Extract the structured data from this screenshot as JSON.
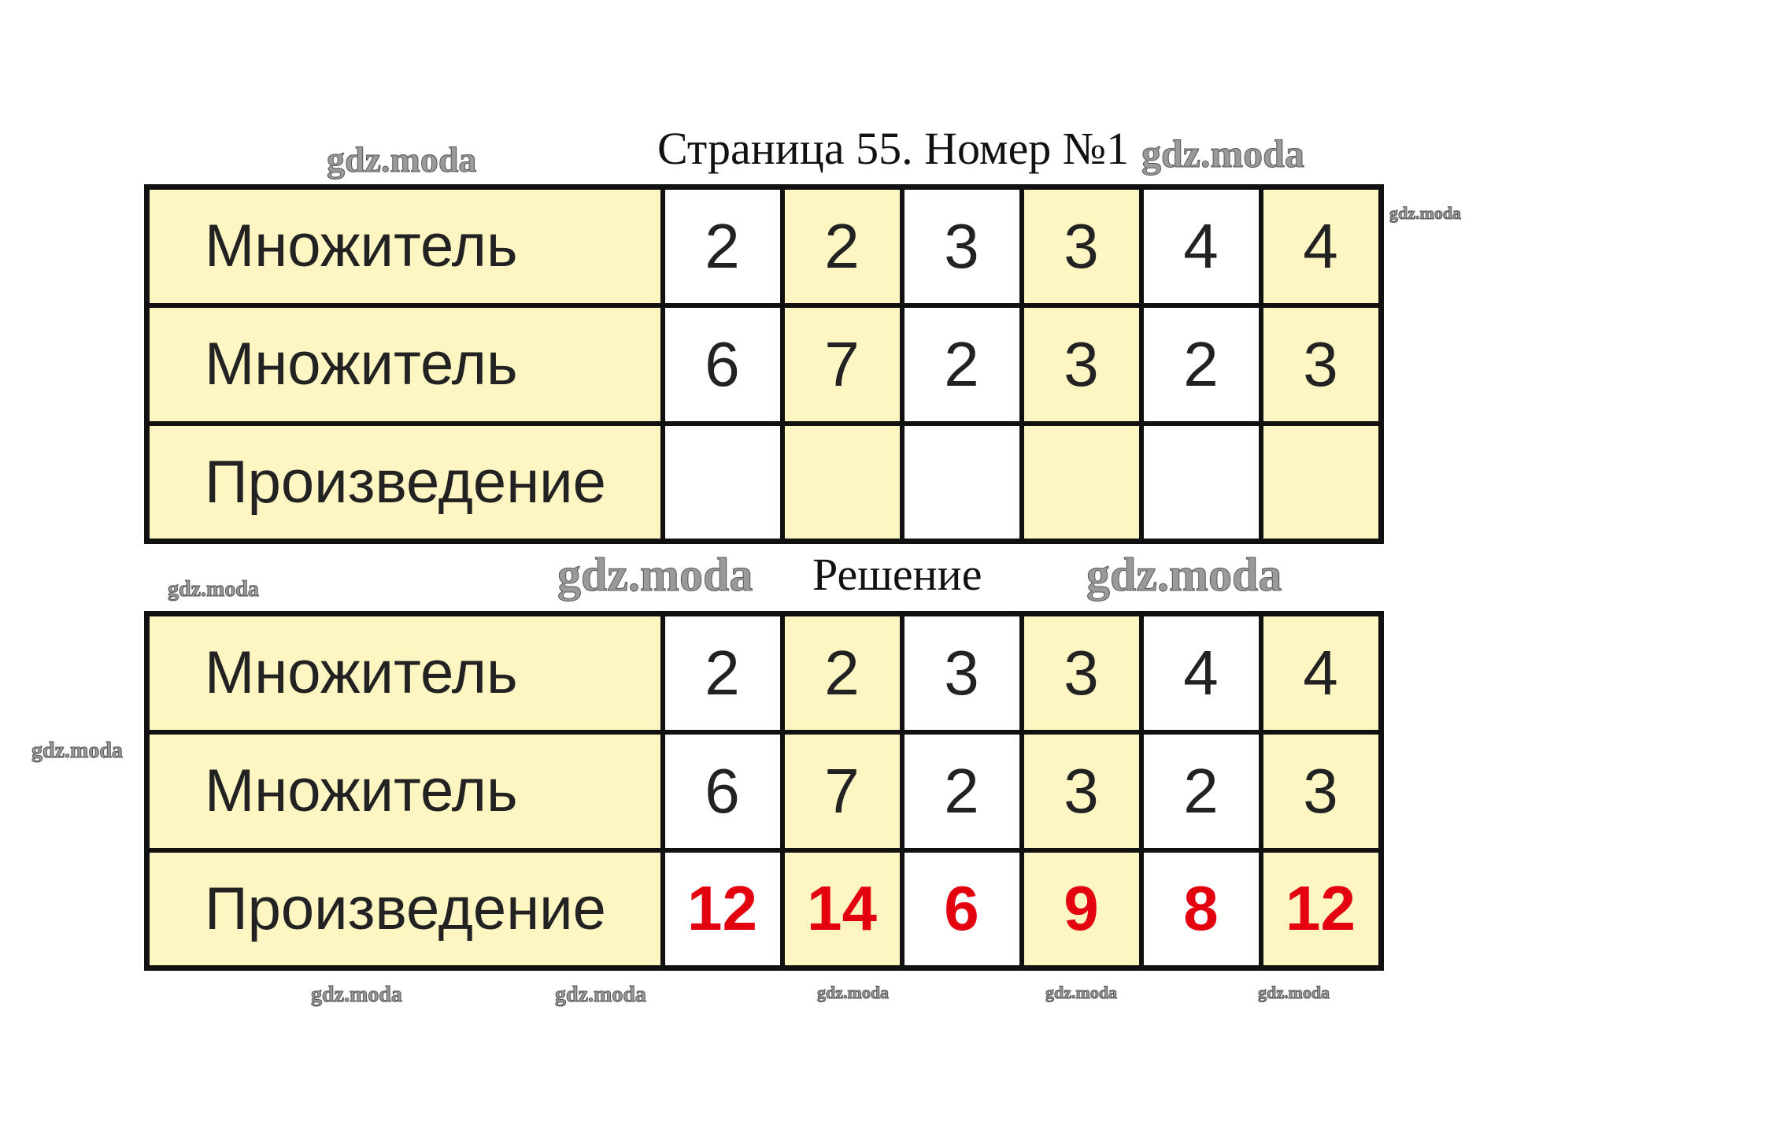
{
  "title": "Страница 55. Номер №1",
  "solution_label": "Решение",
  "watermark": "gdz.moda",
  "colors": {
    "cell_yellow": "#fdf6c3",
    "answer_red": "#e3000f"
  },
  "task_table": {
    "rows": [
      {
        "label": "Множитель",
        "values": [
          "2",
          "2",
          "3",
          "3",
          "4",
          "4"
        ]
      },
      {
        "label": "Множитель",
        "values": [
          "6",
          "7",
          "2",
          "3",
          "2",
          "3"
        ]
      },
      {
        "label": "Произведение",
        "values": [
          "",
          "",
          "",
          "",
          "",
          ""
        ]
      }
    ]
  },
  "solution_table": {
    "rows": [
      {
        "label": "Множитель",
        "values": [
          "2",
          "2",
          "3",
          "3",
          "4",
          "4"
        ]
      },
      {
        "label": "Множитель",
        "values": [
          "6",
          "7",
          "2",
          "3",
          "2",
          "3"
        ]
      },
      {
        "label": "Произведение",
        "values": [
          "12",
          "14",
          "6",
          "9",
          "8",
          "12"
        ]
      }
    ]
  }
}
